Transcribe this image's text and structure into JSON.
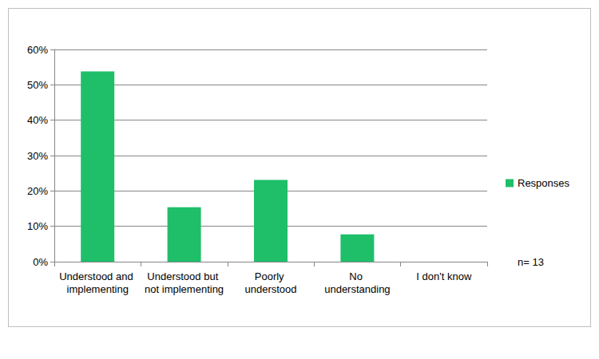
{
  "chart_data": {
    "type": "bar",
    "categories": [
      "Understood and implementing",
      "Understood but not implementing",
      "Poorly understood",
      "No understanding",
      "I don't know"
    ],
    "series": [
      {
        "name": "Responses",
        "color": "#1fbf6a",
        "values": [
          53.8,
          15.4,
          23.1,
          7.7,
          0
        ]
      }
    ],
    "ylim": [
      0,
      60
    ],
    "yticks": [
      {
        "value": 0,
        "label": "0%"
      },
      {
        "value": 10,
        "label": "10%"
      },
      {
        "value": 20,
        "label": "20%"
      },
      {
        "value": 30,
        "label": "30%"
      },
      {
        "value": 40,
        "label": "40%"
      },
      {
        "value": 50,
        "label": "50%"
      },
      {
        "value": 60,
        "label": "60%"
      }
    ],
    "grid": true,
    "legend": "right",
    "annotation": "n= 13"
  }
}
